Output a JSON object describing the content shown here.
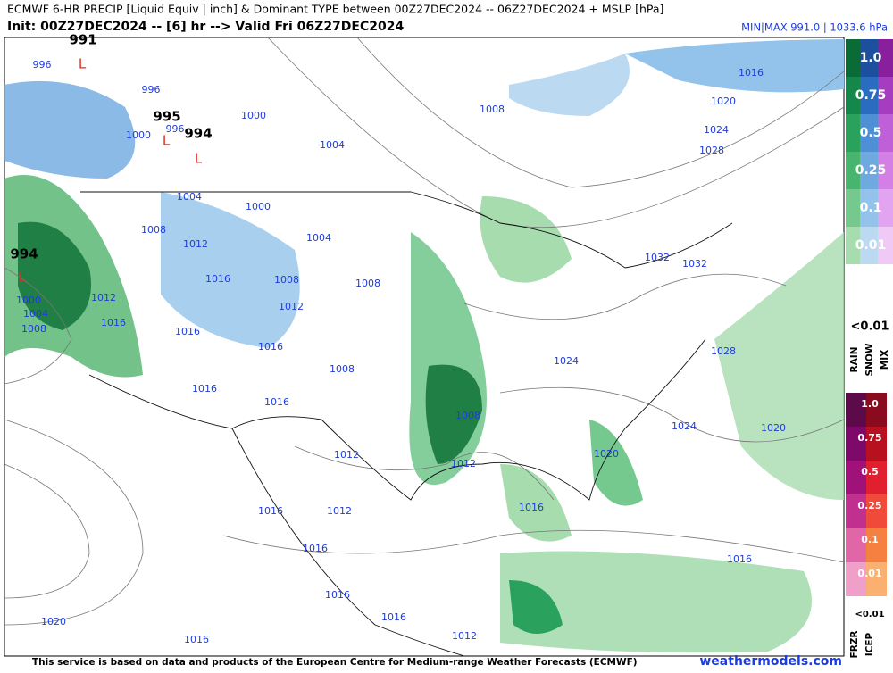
{
  "header": {
    "title": "ECMWF 6-HR PRECIP [Liquid Equiv | inch] & Dominant TYPE between 00Z27DEC2024 -- 06Z27DEC2024 + MSLP [hPa]",
    "init": "Init: 00Z27DEC2024 -- [6] hr --> Valid Fri 06Z27DEC2024",
    "minmax": "MIN|MAX 991.0 | 1033.6 hPa"
  },
  "map": {
    "pressure_labels": [
      "991",
      "996",
      "996",
      "995",
      "996",
      "994",
      "1000",
      "1000",
      "1004",
      "1008",
      "1016",
      "1020",
      "1024",
      "1028",
      "1004",
      "1000",
      "1004",
      "1008",
      "1012",
      "994",
      "1016",
      "1008",
      "1012",
      "1008",
      "1012",
      "1000",
      "1004",
      "1008",
      "1016",
      "1016",
      "1016",
      "1032",
      "1032",
      "1024",
      "1028",
      "1008",
      "1016",
      "1016",
      "1008",
      "1024",
      "1020",
      "1012",
      "1012",
      "1020",
      "1016",
      "1012",
      "1016",
      "1016",
      "1016",
      "1016",
      "1016",
      "1020",
      "1016",
      "1012"
    ],
    "low_labels": [
      "L",
      "L",
      "L",
      "L"
    ]
  },
  "legend": {
    "upper": {
      "levels": [
        "1.0",
        "0.75",
        "0.5",
        "0.25",
        "0.1",
        "0.01"
      ],
      "below": "<0.01",
      "types": [
        "RAIN",
        "SNOW",
        "MIX"
      ]
    },
    "lower": {
      "levels": [
        "1.0",
        "0.75",
        "0.5",
        "0.25",
        "0.1",
        "0.01"
      ],
      "below": "<0.01",
      "types": [
        "FRZR",
        "ICEP"
      ]
    }
  },
  "footer": {
    "notice": "This service is based on data and products of the European Centre for Medium-range Weather Forecasts (ECMWF)",
    "site": "weathermodels.com"
  }
}
